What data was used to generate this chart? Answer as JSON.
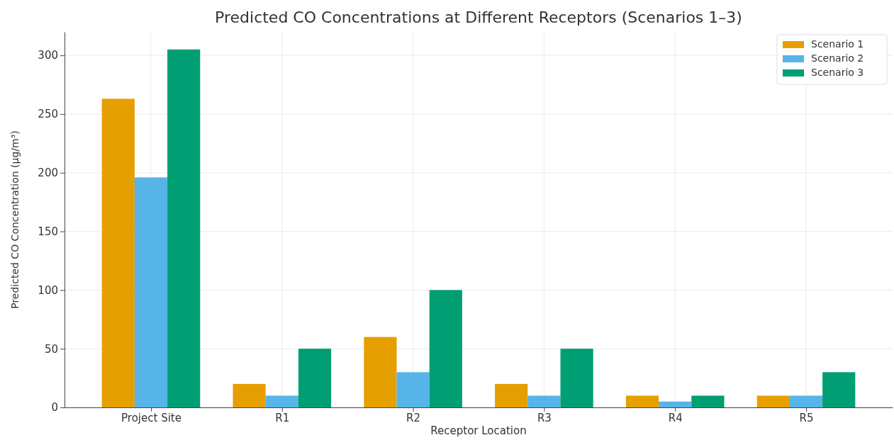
{
  "chart_data": {
    "type": "bar",
    "title": "Predicted CO Concentrations at Different Receptors (Scenarios 1–3)",
    "xlabel": "Receptor Location",
    "ylabel": "Predicted CO Concentration (μg/m³)",
    "categories": [
      "Project Site",
      "R1",
      "R2",
      "R3",
      "R4",
      "R5"
    ],
    "series": [
      {
        "name": "Scenario 1",
        "color": "#e69f00",
        "values": [
          263,
          20,
          60,
          20,
          10,
          10
        ]
      },
      {
        "name": "Scenario 2",
        "color": "#56b4e9",
        "values": [
          196,
          10,
          30,
          10,
          5,
          10
        ]
      },
      {
        "name": "Scenario 3",
        "color": "#009e73",
        "values": [
          305,
          50,
          100,
          50,
          10,
          30
        ]
      }
    ],
    "ylim": [
      0,
      320
    ],
    "yticks": [
      0,
      50,
      100,
      150,
      200,
      250,
      300
    ],
    "grid": true,
    "legend": "top right"
  }
}
